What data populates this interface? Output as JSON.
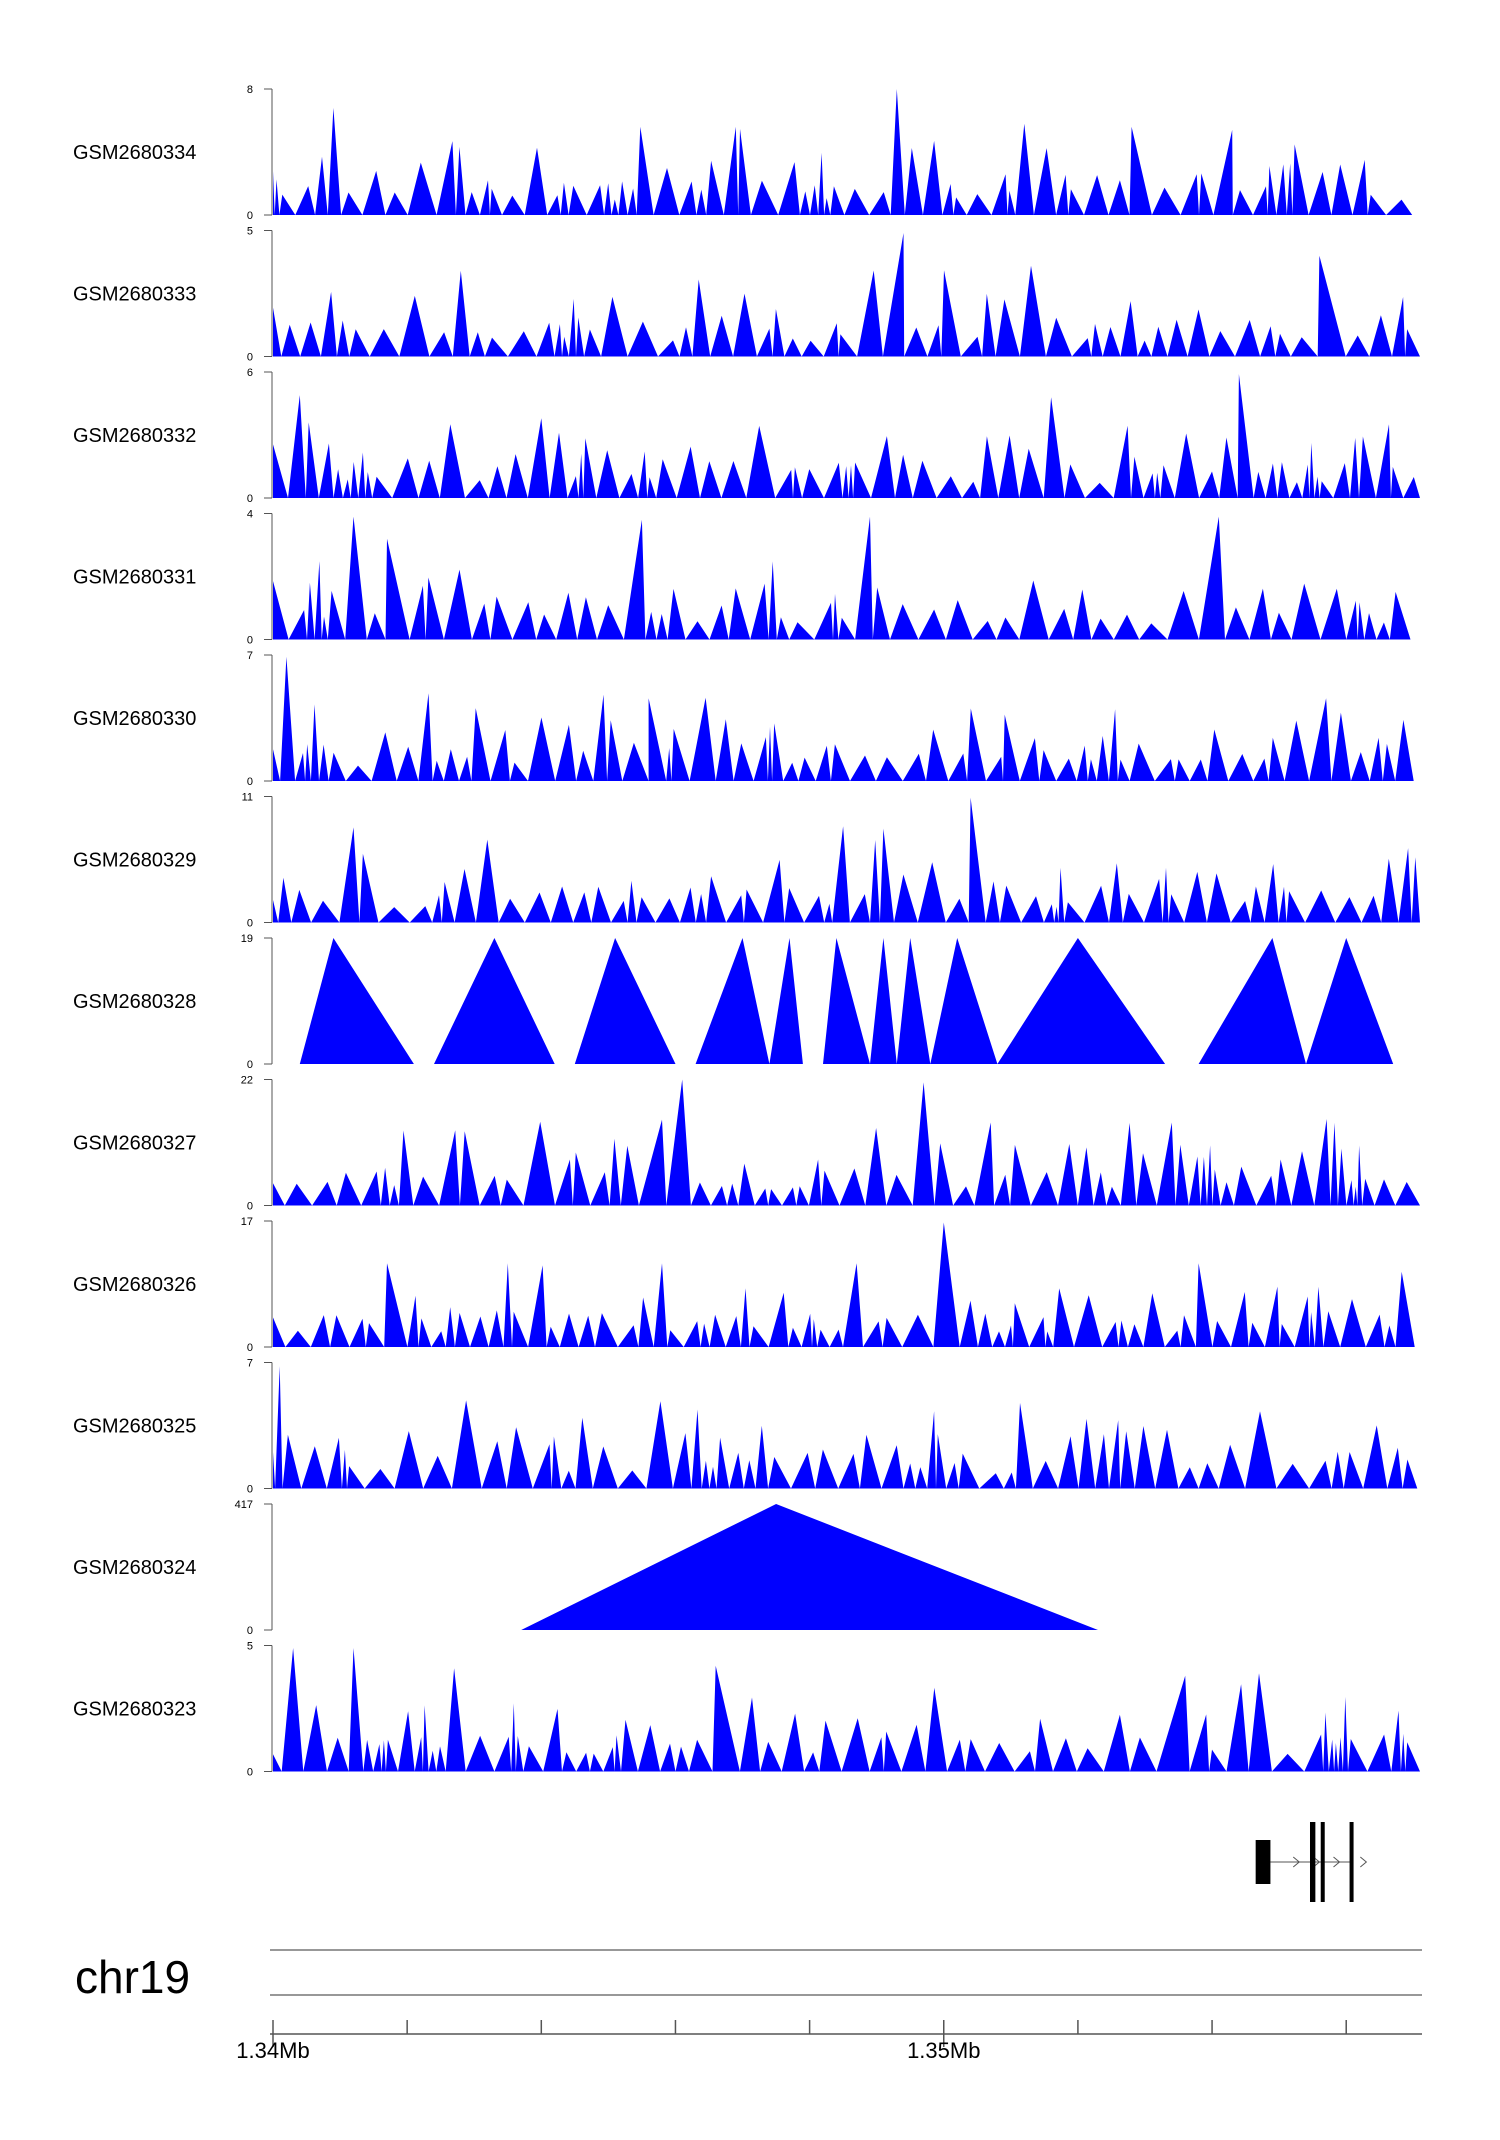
{
  "chart_data": {
    "type": "area",
    "title": "",
    "chromosome": "chr19",
    "xlim": [
      1.34,
      1.3571
    ],
    "x_unit": "Mb",
    "x_ticks": [
      1.34,
      1.342,
      1.344,
      1.346,
      1.348,
      1.35,
      1.352,
      1.354,
      1.356
    ],
    "x_tick_labels": [
      {
        "value": 1.34,
        "label": "1.34Mb"
      },
      {
        "value": 1.35,
        "label": "1.35Mb"
      }
    ],
    "colors": {
      "signal": "#0000ff",
      "gene": "#000000",
      "axis": "#555555"
    },
    "tracks": [
      {
        "name": "GSM2680334",
        "ylim": [
          0,
          8
        ],
        "ymax_label": "8",
        "ymin_label": "0",
        "style": "peaks",
        "seed": 3,
        "anchors": [
          [
            1.3409,
            6.8
          ],
          [
            1.3469,
            5.6
          ],
          [
            1.3493,
            8.0
          ],
          [
            1.3512,
            5.8
          ],
          [
            1.3528,
            5.6
          ],
          [
            1.3543,
            5.4
          ]
        ]
      },
      {
        "name": "GSM2680333",
        "ylim": [
          0,
          5
        ],
        "ymax_label": "5",
        "ymin_label": "0",
        "style": "peaks",
        "seed": 5,
        "anchors": [
          [
            1.3494,
            4.9
          ],
          [
            1.3556,
            4.0
          ],
          [
            1.3513,
            3.6
          ],
          [
            1.3428,
            3.4
          ]
        ]
      },
      {
        "name": "GSM2680332",
        "ylim": [
          0,
          6
        ],
        "ymax_label": "6",
        "ymin_label": "0",
        "style": "peaks",
        "seed": 7,
        "anchors": [
          [
            1.3544,
            5.9
          ],
          [
            1.3404,
            4.9
          ],
          [
            1.3516,
            4.8
          ],
          [
            1.344,
            3.8
          ]
        ]
      },
      {
        "name": "GSM2680331",
        "ylim": [
          0,
          4
        ],
        "ymax_label": "4",
        "ymin_label": "0",
        "style": "peaks",
        "seed": 11,
        "anchors": [
          [
            1.3412,
            3.9
          ],
          [
            1.3541,
            3.9
          ],
          [
            1.3489,
            3.9
          ],
          [
            1.3455,
            3.8
          ],
          [
            1.3417,
            3.2
          ]
        ]
      },
      {
        "name": "GSM2680330",
        "ylim": [
          0,
          7
        ],
        "ymax_label": "7",
        "ymin_label": "0",
        "style": "peaks",
        "seed": 13,
        "anchors": [
          [
            1.3402,
            6.9
          ],
          [
            1.3456,
            4.6
          ],
          [
            1.3557,
            4.6
          ]
        ]
      },
      {
        "name": "GSM2680329",
        "ylim": [
          0,
          11
        ],
        "ymax_label": "11",
        "ymin_label": "0",
        "style": "peaks",
        "seed": 17,
        "anchors": [
          [
            1.3504,
            10.9
          ],
          [
            1.3485,
            8.4
          ],
          [
            1.3412,
            8.3
          ],
          [
            1.3491,
            8.2
          ]
        ]
      },
      {
        "name": "GSM2680328",
        "ylim": [
          0,
          19
        ],
        "ymax_label": "19",
        "ymin_label": "0",
        "style": "explicit",
        "x": [
          1.3404,
          1.3409,
          1.3421,
          1.3424,
          1.3433,
          1.3442,
          1.3445,
          1.3451,
          1.346,
          1.3463,
          1.347,
          1.3474,
          1.3477,
          1.3479,
          1.3482,
          1.3484,
          1.3489,
          1.3491,
          1.3493,
          1.3495,
          1.3498,
          1.3502,
          1.3508,
          1.352,
          1.3533,
          1.3538,
          1.3549,
          1.3554,
          1.356,
          1.3567
        ],
        "y": [
          0,
          19,
          0,
          0,
          19,
          0,
          0,
          19,
          0,
          0,
          19,
          0,
          19,
          0,
          0,
          19,
          0,
          19,
          0,
          19,
          0,
          19,
          0,
          19,
          0,
          0,
          19,
          0,
          19,
          0
        ]
      },
      {
        "name": "GSM2680327",
        "ylim": [
          0,
          22
        ],
        "ymax_label": "22",
        "ymin_label": "0",
        "style": "peaks",
        "seed": 19,
        "anchors": [
          [
            1.3461,
            22.0
          ],
          [
            1.3497,
            21.5
          ],
          [
            1.3458,
            15.0
          ],
          [
            1.3507,
            14.5
          ],
          [
            1.3534,
            14.5
          ]
        ]
      },
      {
        "name": "GSM2680326",
        "ylim": [
          0,
          17
        ],
        "ymax_label": "17",
        "ymin_label": "0",
        "style": "peaks",
        "seed": 23,
        "anchors": [
          [
            1.35,
            16.8
          ],
          [
            1.3487,
            11.3
          ],
          [
            1.3458,
            11.3
          ],
          [
            1.3538,
            11.3
          ],
          [
            1.3417,
            11.3
          ],
          [
            1.3435,
            11.3
          ]
        ]
      },
      {
        "name": "GSM2680325",
        "ylim": [
          0,
          7
        ],
        "ymax_label": "7",
        "ymin_label": "0",
        "style": "peaks",
        "seed": 29,
        "anchors": [
          [
            1.3401,
            6.8
          ],
          [
            1.3526,
            3.8
          ]
        ]
      },
      {
        "name": "GSM2680324",
        "ylim": [
          0,
          417
        ],
        "ymax_label": "417",
        "ymin_label": "0",
        "style": "explicit",
        "x": [
          1.3437,
          1.3475,
          1.3523
        ],
        "y": [
          0,
          417,
          0
        ]
      },
      {
        "name": "GSM2680323",
        "ylim": [
          0,
          5
        ],
        "ymax_label": "5",
        "ymin_label": "0",
        "style": "peaks",
        "seed": 31,
        "anchors": [
          [
            1.3403,
            4.9
          ],
          [
            1.3412,
            4.9
          ],
          [
            1.3427,
            4.1
          ],
          [
            1.3466,
            4.2
          ],
          [
            1.3547,
            3.9
          ],
          [
            1.3536,
            3.8
          ]
        ]
      }
    ],
    "gene_model": {
      "strand": "+",
      "exons": [
        [
          1.35465,
          1.35487
        ],
        [
          1.35546,
          1.35554
        ],
        [
          1.35562,
          1.35565
        ],
        [
          1.35605,
          1.35609
        ]
      ],
      "intron_span": [
        1.35487,
        1.35605
      ]
    }
  }
}
